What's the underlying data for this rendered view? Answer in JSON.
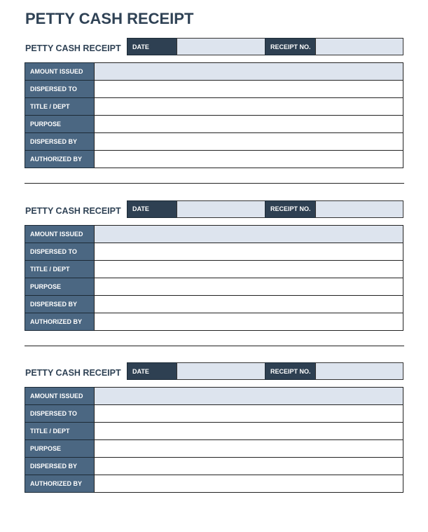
{
  "title": "PETTY CASH RECEIPT",
  "receipts": [
    {
      "heading": "PETTY CASH RECEIPT",
      "date_label": "DATE",
      "receipt_no_label": "RECEIPT NO.",
      "rows": [
        "AMOUNT ISSUED",
        "DISPERSED TO",
        "TITLE / DEPT",
        "PURPOSE",
        "DISPERSED BY",
        "AUTHORIZED BY"
      ]
    },
    {
      "heading": "PETTY CASH RECEIPT",
      "date_label": "DATE",
      "receipt_no_label": "RECEIPT NO.",
      "rows": [
        "AMOUNT ISSUED",
        "DISPERSED TO",
        "TITLE / DEPT",
        "PURPOSE",
        "DISPERSED BY",
        "AUTHORIZED BY"
      ]
    },
    {
      "heading": "PETTY CASH RECEIPT",
      "date_label": "DATE",
      "receipt_no_label": "RECEIPT NO.",
      "rows": [
        "AMOUNT ISSUED",
        "DISPERSED TO",
        "TITLE / DEPT",
        "PURPOSE",
        "DISPERSED BY",
        "AUTHORIZED BY"
      ]
    }
  ]
}
